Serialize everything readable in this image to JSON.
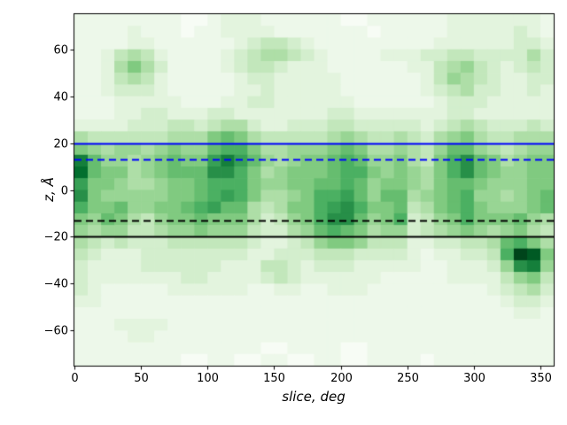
{
  "figure": {
    "background": "#ffffff",
    "border_color": "#000000"
  },
  "chart_data": {
    "type": "heatmap",
    "title": "",
    "xlabel": "slice, deg",
    "ylabel": "z, Å",
    "xlim": [
      0,
      360
    ],
    "ylim": [
      -75,
      75
    ],
    "x_bin_width_deg": 10,
    "y_bin_width_angstrom": 5,
    "x_ticks": [
      0,
      50,
      100,
      150,
      200,
      250,
      300,
      350
    ],
    "x_tick_labels": [
      "0",
      "50",
      "100",
      "150",
      "200",
      "250",
      "300",
      "350"
    ],
    "y_ticks": [
      60,
      40,
      20,
      0,
      -20,
      -40,
      -60
    ],
    "y_tick_labels": [
      "60",
      "40",
      "20",
      "0",
      "−20",
      "−40",
      "−60"
    ],
    "grid": false,
    "legend": "none",
    "colormap": {
      "name": "Greens",
      "low_hex": "#f7fcf5",
      "high_hex": "#00441b",
      "stops": [
        [
          247,
          252,
          245
        ],
        [
          229,
          245,
          224
        ],
        [
          199,
          233,
          192
        ],
        [
          161,
          217,
          155
        ],
        [
          116,
          196,
          118
        ],
        [
          65,
          171,
          93
        ],
        [
          35,
          139,
          69
        ],
        [
          0,
          109,
          44
        ],
        [
          0,
          68,
          27
        ]
      ]
    },
    "grid_scale_max": 15,
    "grid_note": "rows top-to-bottom z=+75..-75 in 5 A bins; cols left-to-right 0..360 deg in 10 deg bins; hex digit = relative density 0-15",
    "grid_rows_hex": [
      "111111110012221111110011111122222221",
      "111121110112222111111101111122222321",
      "111122111111234432111111111222222332",
      "112454211112345543211112223344333353",
      "112575311112344322211111122456432343",
      "112454211111233222221111112465432233",
      "112333211111223222221111112345332232",
      "111222221112233222222111111233322222",
      "111223322233222222233222222233222222",
      "222233344345532233344333332345433343",
      "544444455578754444456544543567544555",
      "765665676689975566678755654688654566",
      "c866567877aca8656778986675479b875677",
      "d877567888bb97567778997676579b876677",
      "a77655677899976677889867765788766677",
      "b7666667789a97556799a868856789665678",
      "9778667789a88545779ab977845789766678",
      "7687546778777534679bb867934679777865",
      "656644566766643356898756634567656754",
      "543433344444432234677644422334458975",
      "432223333333322333444333321223349fe7",
      "322223333332224432333222221122236bc6",
      "322222223322223432222221111122224674",
      "321111122222211221122211111111123453",
      "221111111111111111111111111111112332",
      "111111111111111111111111111111111221",
      "111222211111111111111111111111111111",
      "111122111111111111111111111111111111",
      "111111111111110011110011111111111111",
      "111111110011001100110011110111111111"
    ],
    "hlines": [
      {
        "z": 20,
        "color": "#0000ff",
        "style": "solid",
        "width": 1.8
      },
      {
        "z": 13,
        "color": "#0000ff",
        "style": "dashed",
        "width": 1.8
      },
      {
        "z": -13,
        "color": "#000000",
        "style": "dashed",
        "width": 1.8
      },
      {
        "z": -20,
        "color": "#000000",
        "style": "solid",
        "width": 1.8
      }
    ]
  }
}
